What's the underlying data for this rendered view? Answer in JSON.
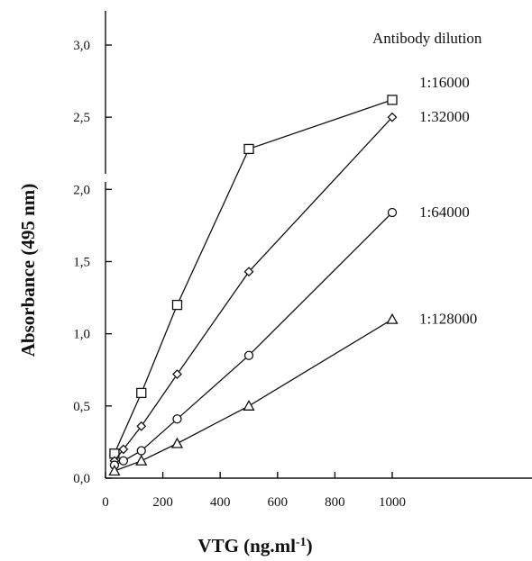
{
  "chart_data": {
    "type": "line",
    "xlabel": "VTG (ng.ml",
    "xlabel_sup": "-1",
    "xlabel_end": ")",
    "ylabel": "Absorbance (495 nm)",
    "legend_title": "Antibody dilution",
    "xlim": [
      0,
      1000
    ],
    "ylim": [
      0,
      3.0
    ],
    "x_ticks": [
      {
        "value": 0,
        "label": "0"
      },
      {
        "value": 200,
        "label": "200"
      },
      {
        "value": 400,
        "label": "400"
      },
      {
        "value": 600,
        "label": "600"
      },
      {
        "value": 800,
        "label": "800"
      },
      {
        "value": 1000,
        "label": "1000"
      }
    ],
    "y_ticks": [
      {
        "value": 0.0,
        "label": "0,0"
      },
      {
        "value": 0.5,
        "label": "0,5"
      },
      {
        "value": 1.0,
        "label": "1,0"
      },
      {
        "value": 1.5,
        "label": "1,5"
      },
      {
        "value": 2.0,
        "label": "2,0"
      },
      {
        "value": 2.5,
        "label": "2,5"
      },
      {
        "value": 3.0,
        "label": "3,0"
      }
    ],
    "grid": false,
    "series": [
      {
        "name": "1:16000",
        "marker": "square",
        "x": [
          31.25,
          125,
          250,
          500,
          1000
        ],
        "y": [
          0.17,
          0.59,
          1.2,
          2.28,
          2.62
        ]
      },
      {
        "name": "1:32000",
        "marker": "diamond",
        "x": [
          31.25,
          62.5,
          125,
          250,
          500,
          1000
        ],
        "y": [
          0.12,
          0.2,
          0.36,
          0.72,
          1.43,
          2.5
        ]
      },
      {
        "name": "1:64000",
        "marker": "circle",
        "x": [
          31.25,
          62.5,
          125,
          250,
          500,
          1000
        ],
        "y": [
          0.09,
          0.12,
          0.19,
          0.41,
          0.85,
          1.84
        ]
      },
      {
        "name": "1:128000",
        "marker": "triangle",
        "x": [
          31.25,
          125,
          250,
          500,
          1000
        ],
        "y": [
          0.05,
          0.12,
          0.24,
          0.5,
          1.1
        ]
      }
    ]
  }
}
